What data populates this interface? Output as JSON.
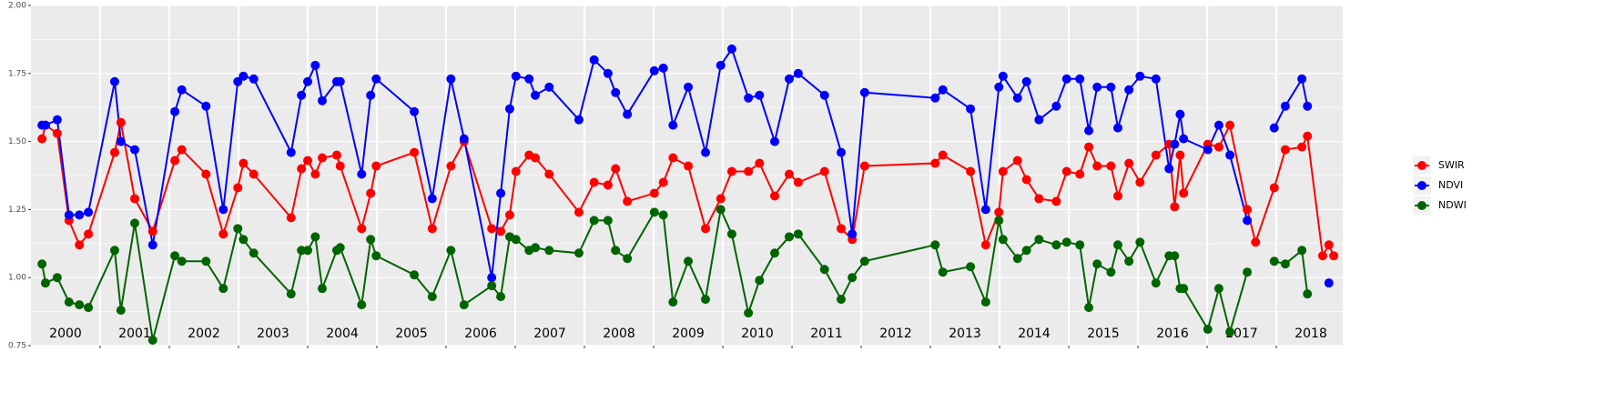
{
  "chart_data": {
    "type": "line",
    "x": [
      2000.16,
      2000.21,
      2000.38,
      2000.55,
      2000.7,
      2000.83,
      2001.21,
      2001.3,
      2001.5,
      2001.76,
      2002.08,
      2002.18,
      2002.53,
      2002.78,
      2002.99,
      2003.07,
      2003.22,
      2003.76,
      2003.91,
      2004.0,
      2004.11,
      2004.21,
      2004.42,
      2004.47,
      2004.78,
      2004.91,
      2004.99,
      2005.54,
      2005.8,
      2006.07,
      2006.26,
      2006.66,
      2006.79,
      2006.92,
      2007.01,
      2007.2,
      2007.29,
      2007.49,
      2007.92,
      2008.14,
      2008.34,
      2008.45,
      2008.62,
      2009.01,
      2009.14,
      2009.28,
      2009.5,
      2009.75,
      2009.97,
      2010.13,
      2010.37,
      2010.53,
      2010.75,
      2010.96,
      2011.09,
      2011.47,
      2011.71,
      2011.87,
      2012.05,
      2013.07,
      2013.18,
      2013.58,
      2013.8,
      2013.99,
      2014.05,
      2014.26,
      2014.39,
      2014.57,
      2014.82,
      2014.97,
      2015.16,
      2015.29,
      2015.41,
      2015.61,
      2015.71,
      2015.87,
      2016.03,
      2016.26,
      2016.45,
      2016.53,
      2016.61,
      2016.66,
      2017.01,
      2017.17,
      2017.33,
      2017.58,
      2017.7,
      2017.97,
      2018.13,
      2018.37,
      2018.45,
      2018.67,
      2018.76,
      2018.83
    ],
    "series": [
      {
        "name": "SWIR",
        "color": "#ff0000",
        "values": [
          1.51,
          1.56,
          1.53,
          1.21,
          1.12,
          1.16,
          1.46,
          1.57,
          1.29,
          1.17,
          1.43,
          1.47,
          1.38,
          1.16,
          1.33,
          1.42,
          1.38,
          1.22,
          1.4,
          1.43,
          1.38,
          1.44,
          1.45,
          1.41,
          1.18,
          1.31,
          1.41,
          1.46,
          1.18,
          1.41,
          1.5,
          1.18,
          1.17,
          1.23,
          1.39,
          1.45,
          1.44,
          1.38,
          1.24,
          1.35,
          1.34,
          1.4,
          1.28,
          1.31,
          1.35,
          1.44,
          1.41,
          1.18,
          1.29,
          1.39,
          1.39,
          1.42,
          1.3,
          1.38,
          1.35,
          1.39,
          1.18,
          1.14,
          1.41,
          1.42,
          1.45,
          1.39,
          1.12,
          1.24,
          1.39,
          1.43,
          1.36,
          1.29,
          1.28,
          1.39,
          1.38,
          1.48,
          1.41,
          1.41,
          1.3,
          1.42,
          1.35,
          1.45,
          1.49,
          1.26,
          1.45,
          1.31,
          1.49,
          1.48,
          1.56,
          1.25,
          1.13,
          1.33,
          1.47,
          1.48,
          1.52,
          1.08,
          1.12,
          1.08
        ]
      },
      {
        "name": "NDVI",
        "color": "#0000ff",
        "values": [
          1.56,
          1.56,
          1.58,
          1.23,
          1.23,
          1.24,
          1.72,
          1.5,
          1.47,
          1.12,
          1.61,
          1.69,
          1.63,
          1.25,
          1.72,
          1.74,
          1.73,
          1.46,
          1.67,
          1.72,
          1.78,
          1.65,
          1.72,
          1.72,
          1.38,
          1.67,
          1.73,
          1.61,
          1.29,
          1.73,
          1.51,
          1.0,
          1.31,
          1.62,
          1.74,
          1.73,
          1.67,
          1.7,
          1.58,
          1.8,
          1.75,
          1.68,
          1.6,
          1.76,
          1.77,
          1.56,
          1.7,
          1.46,
          1.78,
          1.84,
          1.66,
          1.67,
          1.5,
          1.73,
          1.75,
          1.67,
          1.46,
          1.16,
          1.68,
          1.66,
          1.69,
          1.62,
          1.25,
          1.7,
          1.74,
          1.66,
          1.72,
          1.58,
          1.63,
          1.73,
          1.73,
          1.54,
          1.7,
          1.7,
          1.55,
          1.69,
          1.74,
          1.73,
          1.4,
          1.49,
          1.6,
          1.51,
          1.47,
          1.56,
          1.45,
          1.21,
          null,
          1.55,
          1.63,
          1.73,
          1.63,
          null,
          0.98,
          null
        ]
      },
      {
        "name": "NDWI",
        "color": "#006400",
        "values": [
          1.05,
          0.98,
          1.0,
          0.91,
          0.9,
          0.89,
          1.1,
          0.88,
          1.2,
          0.77,
          1.08,
          1.06,
          1.06,
          0.96,
          1.18,
          1.14,
          1.09,
          0.94,
          1.1,
          1.1,
          1.15,
          0.96,
          1.1,
          1.11,
          0.9,
          1.14,
          1.08,
          1.01,
          0.93,
          1.1,
          0.9,
          0.97,
          0.93,
          1.15,
          1.14,
          1.1,
          1.11,
          1.1,
          1.09,
          1.21,
          1.21,
          1.1,
          1.07,
          1.24,
          1.23,
          0.91,
          1.06,
          0.92,
          1.25,
          1.16,
          0.87,
          0.99,
          1.09,
          1.15,
          1.16,
          1.03,
          0.92,
          1.0,
          1.06,
          1.12,
          1.02,
          1.04,
          0.91,
          1.21,
          1.14,
          1.07,
          1.1,
          1.14,
          1.12,
          1.13,
          1.12,
          0.89,
          1.05,
          1.02,
          1.12,
          1.06,
          1.13,
          0.98,
          1.08,
          1.08,
          0.96,
          0.96,
          0.81,
          0.96,
          0.8,
          1.02,
          null,
          1.06,
          1.05,
          1.1,
          0.94,
          null,
          null,
          null
        ]
      }
    ],
    "xlim": [
      2000,
      2018.96
    ],
    "ylim": [
      0.75,
      2.0
    ],
    "yticks": [
      {
        "value": 0.75,
        "label": "0.75"
      },
      {
        "value": 1.0,
        "label": "1.00"
      },
      {
        "value": 1.25,
        "label": "1.25"
      },
      {
        "value": 1.5,
        "label": "1.50"
      },
      {
        "value": 1.75,
        "label": "1.75"
      },
      {
        "value": 2.0,
        "label": "2.00"
      }
    ],
    "y_minor_grid": [
      0.875,
      1.125,
      1.375,
      1.625,
      1.875
    ],
    "year_lines": [
      2001,
      2002,
      2003,
      2004,
      2005,
      2006,
      2007,
      2008,
      2009,
      2010,
      2011,
      2012,
      2013,
      2014,
      2015,
      2016,
      2017,
      2018
    ],
    "year_labels": [
      {
        "value": 2000.5,
        "label": "2000"
      },
      {
        "value": 2001.5,
        "label": "2001"
      },
      {
        "value": 2002.5,
        "label": "2002"
      },
      {
        "value": 2003.5,
        "label": "2003"
      },
      {
        "value": 2004.5,
        "label": "2004"
      },
      {
        "value": 2005.5,
        "label": "2005"
      },
      {
        "value": 2006.5,
        "label": "2006"
      },
      {
        "value": 2007.5,
        "label": "2007"
      },
      {
        "value": 2008.5,
        "label": "2008"
      },
      {
        "value": 2009.5,
        "label": "2009"
      },
      {
        "value": 2010.5,
        "label": "2010"
      },
      {
        "value": 2011.5,
        "label": "2011"
      },
      {
        "value": 2012.5,
        "label": "2012"
      },
      {
        "value": 2013.5,
        "label": "2013"
      },
      {
        "value": 2014.5,
        "label": "2014"
      },
      {
        "value": 2015.5,
        "label": "2015"
      },
      {
        "value": 2016.5,
        "label": "2016"
      },
      {
        "value": 2017.5,
        "label": "2017"
      },
      {
        "value": 2018.5,
        "label": "2018"
      }
    ],
    "grid": true,
    "legend": "right"
  }
}
